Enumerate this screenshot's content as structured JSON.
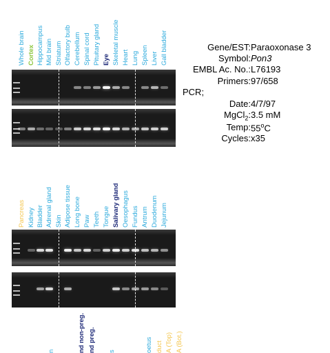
{
  "colors": {
    "cyan": "#2aa9dc",
    "green": "#8cc63f",
    "navy": "#1e2a78",
    "yellow": "#f4c64f",
    "gel_bg": "#1a1a1a",
    "band": "#ffffff"
  },
  "panel1": {
    "labels": [
      {
        "text": "Whole brain",
        "color": "cyan"
      },
      {
        "text": "Cortex",
        "color": "green"
      },
      {
        "text": "Hippocampus",
        "color": "cyan"
      },
      {
        "text": "Mid brain",
        "color": "cyan"
      },
      {
        "text": "Striatum",
        "color": "cyan"
      },
      {
        "text": "Olfactory bulb",
        "color": "cyan"
      },
      {
        "text": "Cerebellum",
        "color": "cyan"
      },
      {
        "text": "Spinal cord",
        "color": "cyan"
      },
      {
        "text": "Pituitary gland",
        "color": "cyan"
      },
      {
        "text": "Eye",
        "color": "navy"
      },
      {
        "text": "Skeletal muscle",
        "color": "cyan"
      },
      {
        "text": "Heart",
        "color": "cyan"
      },
      {
        "text": "Lung",
        "color": "cyan"
      },
      {
        "text": "Spleen",
        "color": "cyan"
      },
      {
        "text": "Liver",
        "color": "cyan"
      },
      {
        "text": "Gall bladder",
        "color": "cyan"
      }
    ]
  },
  "panel2": {
    "labels": [
      {
        "text": "Pancreas",
        "color": "yellow"
      },
      {
        "text": "Kidney",
        "color": "cyan"
      },
      {
        "text": "Bladder",
        "color": "cyan"
      },
      {
        "text": "Adrenal gland",
        "color": "cyan"
      },
      {
        "text": "Skin",
        "color": "cyan"
      },
      {
        "text": "Adipose tissue",
        "color": "cyan"
      },
      {
        "text": "Long bone",
        "color": "cyan"
      },
      {
        "text": "Paw",
        "color": "cyan"
      },
      {
        "text": "Teeth",
        "color": "cyan"
      },
      {
        "text": "Tongue",
        "color": "cyan"
      },
      {
        "text": "Salivary gland",
        "color": "navy"
      },
      {
        "text": "Oesophagus",
        "color": "cyan"
      },
      {
        "text": "Fundus",
        "color": "cyan"
      },
      {
        "text": "Antrum",
        "color": "cyan"
      },
      {
        "text": "Duodenum",
        "color": "cyan"
      },
      {
        "text": "Jejunum",
        "color": "cyan"
      }
    ]
  },
  "panel3": {
    "labels": [
      {
        "text": "n",
        "color": "cyan"
      },
      {
        "text": "nd non-preg.",
        "color": "navy"
      },
      {
        "text": "nd preg.",
        "color": "navy"
      },
      {
        "text": "s",
        "color": "cyan"
      },
      {
        "text": "oetus",
        "color": "cyan"
      },
      {
        "text": "duct",
        "color": "yellow"
      },
      {
        "text": "A (Top)",
        "color": "yellow"
      },
      {
        "text": "A (Bot.)",
        "color": "yellow"
      }
    ]
  },
  "gels": {
    "gel1": [
      0,
      0,
      0,
      0,
      0,
      0,
      0.35,
      0.3,
      0.45,
      0.95,
      0.55,
      0.35,
      0,
      0.35,
      0.6,
      0.2
    ],
    "gel2": [
      0.3,
      0.55,
      0.2,
      0.15,
      0.1,
      0.3,
      0.75,
      0.8,
      0.85,
      1.0,
      0.8,
      0.6,
      0.55,
      0.7,
      0.75,
      0.75
    ],
    "gel3": [
      0,
      0.15,
      0.8,
      0.85,
      0,
      0.9,
      0.7,
      0.8,
      0.15,
      0.75,
      0.9,
      0.75,
      0.85,
      0.65,
      0.6,
      0.4
    ],
    "gel4": [
      0,
      0,
      0.5,
      0.8,
      0,
      0.55,
      0,
      0,
      0,
      0,
      0.7,
      0.35,
      0.5,
      0.45,
      0.35,
      0.1
    ]
  },
  "info": {
    "gene_label": "Gene/EST:",
    "gene_value": "Paraoxonase 3",
    "symbol_label": "Symbol:",
    "symbol_value": "Pon3",
    "embl_label": "EMBL Ac. No.:",
    "embl_value": "L76193",
    "primers_label": "Primers:",
    "primers_value": "97/658",
    "pcr_label": "PCR;",
    "date_label": "Date:",
    "date_value": "4/7/97",
    "mgcl_label_main": "MgCl",
    "mgcl_label_sub": "2",
    "mgcl_label_colon": ":",
    "mgcl_value": "3.5 mM",
    "temp_label": "Temp:",
    "temp_value_num": "55",
    "temp_value_sup": "o",
    "temp_value_unit": "C",
    "cycles_label": "Cycles:",
    "cycles_value": "x35"
  }
}
